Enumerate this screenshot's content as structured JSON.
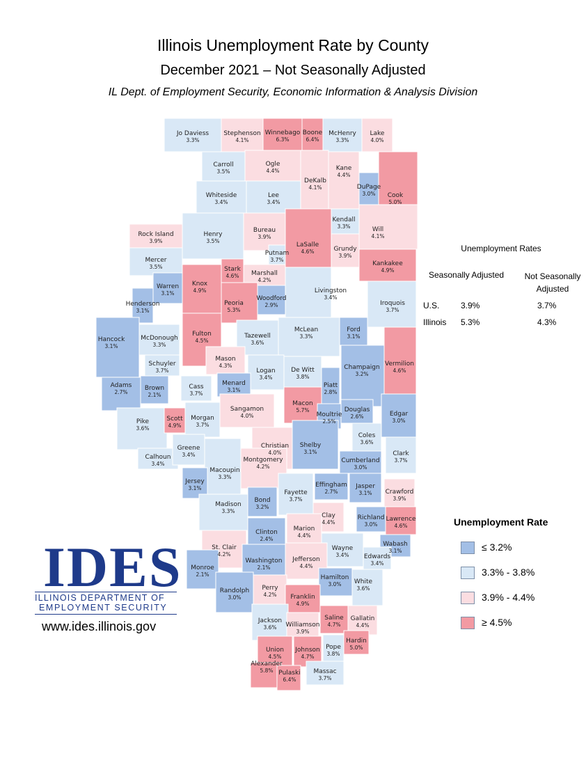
{
  "title": "Illinois Unemployment Rate by County",
  "subtitle": "December 2021 – Not Seasonally Adjusted",
  "source": "IL Dept. of Employment Security, Economic Information & Analysis Division",
  "colors": {
    "low": "#a3bfe6",
    "midlow": "#d9e8f6",
    "midhigh": "#fbdde1",
    "high": "#f29aa3",
    "border": "#ffffff"
  },
  "rates_table": {
    "heading": "Unemployment Rates",
    "col1": "Seasonally Adjusted",
    "col2": "Not Seasonally Adjusted",
    "rows": [
      {
        "label": "U.S.",
        "sa": "3.9%",
        "nsa": "3.7%"
      },
      {
        "label": "Illinois",
        "sa": "5.3%",
        "nsa": "4.3%"
      }
    ]
  },
  "legend": {
    "title": "Unemployment Rate",
    "items": [
      {
        "label": "≤ 3.2%",
        "cls": "low"
      },
      {
        "label": "3.3% - 3.8%",
        "cls": "midlow"
      },
      {
        "label": "3.9% - 4.4%",
        "cls": "midhigh"
      },
      {
        "label": "≥ 4.5%",
        "cls": "high"
      }
    ]
  },
  "logo": {
    "word": "IDES",
    "line1": "ILLINOIS DEPARTMENT OF",
    "line2": "EMPLOYMENT SECURITY",
    "url": "www.ides.illinois.gov"
  },
  "counties": [
    {
      "name": "Jo Daviess",
      "value": "3.3%",
      "cls": "midlow"
    },
    {
      "name": "Stephenson",
      "value": "4.1%",
      "cls": "midhigh"
    },
    {
      "name": "Winnebago",
      "value": "6.3%",
      "cls": "high"
    },
    {
      "name": "Boone",
      "value": "6.4%",
      "cls": "high"
    },
    {
      "name": "McHenry",
      "value": "3.3%",
      "cls": "midlow"
    },
    {
      "name": "Lake",
      "value": "4.0%",
      "cls": "midhigh"
    },
    {
      "name": "Carroll",
      "value": "3.5%",
      "cls": "midlow"
    },
    {
      "name": "Ogle",
      "value": "4.4%",
      "cls": "midhigh"
    },
    {
      "name": "DeKalb",
      "value": "4.1%",
      "cls": "midhigh"
    },
    {
      "name": "Kane",
      "value": "4.4%",
      "cls": "midhigh"
    },
    {
      "name": "DuPage",
      "value": "3.0%",
      "cls": "low"
    },
    {
      "name": "Cook",
      "value": "5.0%",
      "cls": "high"
    },
    {
      "name": "Whiteside",
      "value": "3.4%",
      "cls": "midlow"
    },
    {
      "name": "Lee",
      "value": "3.4%",
      "cls": "midlow"
    },
    {
      "name": "Kendall",
      "value": "3.3%",
      "cls": "midlow"
    },
    {
      "name": "Rock Island",
      "value": "3.9%",
      "cls": "midhigh"
    },
    {
      "name": "Henry",
      "value": "3.5%",
      "cls": "midlow"
    },
    {
      "name": "Bureau",
      "value": "3.9%",
      "cls": "midhigh"
    },
    {
      "name": "LaSalle",
      "value": "4.6%",
      "cls": "high"
    },
    {
      "name": "Grundy",
      "value": "3.9%",
      "cls": "midhigh"
    },
    {
      "name": "Will",
      "value": "4.1%",
      "cls": "midhigh"
    },
    {
      "name": "Mercer",
      "value": "3.5%",
      "cls": "midlow"
    },
    {
      "name": "Putnam",
      "value": "3.7%",
      "cls": "midlow"
    },
    {
      "name": "Stark",
      "value": "4.6%",
      "cls": "high"
    },
    {
      "name": "Marshall",
      "value": "4.2%",
      "cls": "midhigh"
    },
    {
      "name": "Kankakee",
      "value": "4.9%",
      "cls": "high"
    },
    {
      "name": "Warren",
      "value": "3.1%",
      "cls": "low"
    },
    {
      "name": "Knox",
      "value": "4.9%",
      "cls": "high"
    },
    {
      "name": "Peoria",
      "value": "5.3%",
      "cls": "high"
    },
    {
      "name": "Livingston",
      "value": "3.4%",
      "cls": "midlow"
    },
    {
      "name": "Henderson",
      "value": "3.1%",
      "cls": "low"
    },
    {
      "name": "Woodford",
      "value": "2.9%",
      "cls": "low"
    },
    {
      "name": "Iroquois",
      "value": "3.7%",
      "cls": "midlow"
    },
    {
      "name": "Hancock",
      "value": "3.1%",
      "cls": "low"
    },
    {
      "name": "McDonough",
      "value": "3.3%",
      "cls": "midlow"
    },
    {
      "name": "Fulton",
      "value": "4.5%",
      "cls": "high"
    },
    {
      "name": "Tazewell",
      "value": "3.6%",
      "cls": "midlow"
    },
    {
      "name": "McLean",
      "value": "3.3%",
      "cls": "midlow"
    },
    {
      "name": "Ford",
      "value": "3.1%",
      "cls": "low"
    },
    {
      "name": "Schuyler",
      "value": "3.7%",
      "cls": "midlow"
    },
    {
      "name": "Mason",
      "value": "4.3%",
      "cls": "midhigh"
    },
    {
      "name": "Logan",
      "value": "3.4%",
      "cls": "midlow"
    },
    {
      "name": "De Witt",
      "value": "3.8%",
      "cls": "midlow"
    },
    {
      "name": "Champaign",
      "value": "3.2%",
      "cls": "low"
    },
    {
      "name": "Vermilion",
      "value": "4.6%",
      "cls": "high"
    },
    {
      "name": "Adams",
      "value": "2.7%",
      "cls": "low"
    },
    {
      "name": "Brown",
      "value": "2.1%",
      "cls": "low"
    },
    {
      "name": "Cass",
      "value": "3.7%",
      "cls": "midlow"
    },
    {
      "name": "Menard",
      "value": "3.1%",
      "cls": "low"
    },
    {
      "name": "Piatt",
      "value": "2.8%",
      "cls": "low"
    },
    {
      "name": "Macon",
      "value": "5.7%",
      "cls": "high"
    },
    {
      "name": "Pike",
      "value": "3.6%",
      "cls": "midlow"
    },
    {
      "name": "Scott",
      "value": "4.9%",
      "cls": "high"
    },
    {
      "name": "Morgan",
      "value": "3.7%",
      "cls": "midlow"
    },
    {
      "name": "Sangamon",
      "value": "4.0%",
      "cls": "midhigh"
    },
    {
      "name": "Christian",
      "value": "4.0%",
      "cls": "midhigh"
    },
    {
      "name": "Moultrie",
      "value": "2.5%",
      "cls": "low"
    },
    {
      "name": "Douglas",
      "value": "2.6%",
      "cls": "low"
    },
    {
      "name": "Edgar",
      "value": "3.0%",
      "cls": "low"
    },
    {
      "name": "Coles",
      "value": "3.6%",
      "cls": "midlow"
    },
    {
      "name": "Calhoun",
      "value": "3.4%",
      "cls": "midlow"
    },
    {
      "name": "Greene",
      "value": "3.4%",
      "cls": "midlow"
    },
    {
      "name": "Shelby",
      "value": "3.1%",
      "cls": "low"
    },
    {
      "name": "Clark",
      "value": "3.7%",
      "cls": "midlow"
    },
    {
      "name": "Montgomery",
      "value": "4.2%",
      "cls": "midhigh"
    },
    {
      "name": "Macoupin",
      "value": "3.3%",
      "cls": "midlow"
    },
    {
      "name": "Cumberland",
      "value": "3.0%",
      "cls": "low"
    },
    {
      "name": "Jersey",
      "value": "3.1%",
      "cls": "low"
    },
    {
      "name": "Fayette",
      "value": "3.7%",
      "cls": "midlow"
    },
    {
      "name": "Effingham",
      "value": "2.7%",
      "cls": "low"
    },
    {
      "name": "Jasper",
      "value": "3.1%",
      "cls": "low"
    },
    {
      "name": "Crawford",
      "value": "3.9%",
      "cls": "midhigh"
    },
    {
      "name": "Madison",
      "value": "3.3%",
      "cls": "midlow"
    },
    {
      "name": "Bond",
      "value": "3.2%",
      "cls": "low"
    },
    {
      "name": "Clay",
      "value": "4.4%",
      "cls": "midhigh"
    },
    {
      "name": "Richland",
      "value": "3.0%",
      "cls": "low"
    },
    {
      "name": "Lawrence",
      "value": "4.6%",
      "cls": "high"
    },
    {
      "name": "Clinton",
      "value": "2.4%",
      "cls": "low"
    },
    {
      "name": "Marion",
      "value": "4.4%",
      "cls": "midhigh"
    },
    {
      "name": "St. Clair",
      "value": "4.2%",
      "cls": "midhigh"
    },
    {
      "name": "Wabash",
      "value": "3.1%",
      "cls": "low"
    },
    {
      "name": "Wayne",
      "value": "3.4%",
      "cls": "midlow"
    },
    {
      "name": "Edwards",
      "value": "3.4%",
      "cls": "midlow"
    },
    {
      "name": "Monroe",
      "value": "2.1%",
      "cls": "low"
    },
    {
      "name": "Washington",
      "value": "2.1%",
      "cls": "low"
    },
    {
      "name": "Jefferson",
      "value": "4.4%",
      "cls": "midhigh"
    },
    {
      "name": "White",
      "value": "3.6%",
      "cls": "midlow"
    },
    {
      "name": "Hamilton",
      "value": "3.0%",
      "cls": "low"
    },
    {
      "name": "Randolph",
      "value": "3.0%",
      "cls": "low"
    },
    {
      "name": "Perry",
      "value": "4.2%",
      "cls": "midhigh"
    },
    {
      "name": "Franklin",
      "value": "4.9%",
      "cls": "high"
    },
    {
      "name": "Jackson",
      "value": "3.6%",
      "cls": "midlow"
    },
    {
      "name": "Williamson",
      "value": "3.9%",
      "cls": "midhigh"
    },
    {
      "name": "Saline",
      "value": "4.7%",
      "cls": "high"
    },
    {
      "name": "Gallatin",
      "value": "4.4%",
      "cls": "midhigh"
    },
    {
      "name": "Union",
      "value": "4.5%",
      "cls": "high"
    },
    {
      "name": "Johnson",
      "value": "4.7%",
      "cls": "high"
    },
    {
      "name": "Pope",
      "value": "3.8%",
      "cls": "midlow"
    },
    {
      "name": "Hardin",
      "value": "5.0%",
      "cls": "high"
    },
    {
      "name": "Alexander",
      "value": "5.8%",
      "cls": "high"
    },
    {
      "name": "Pulaski",
      "value": "6.4%",
      "cls": "high"
    },
    {
      "name": "Massac",
      "value": "3.7%",
      "cls": "midlow"
    }
  ]
}
